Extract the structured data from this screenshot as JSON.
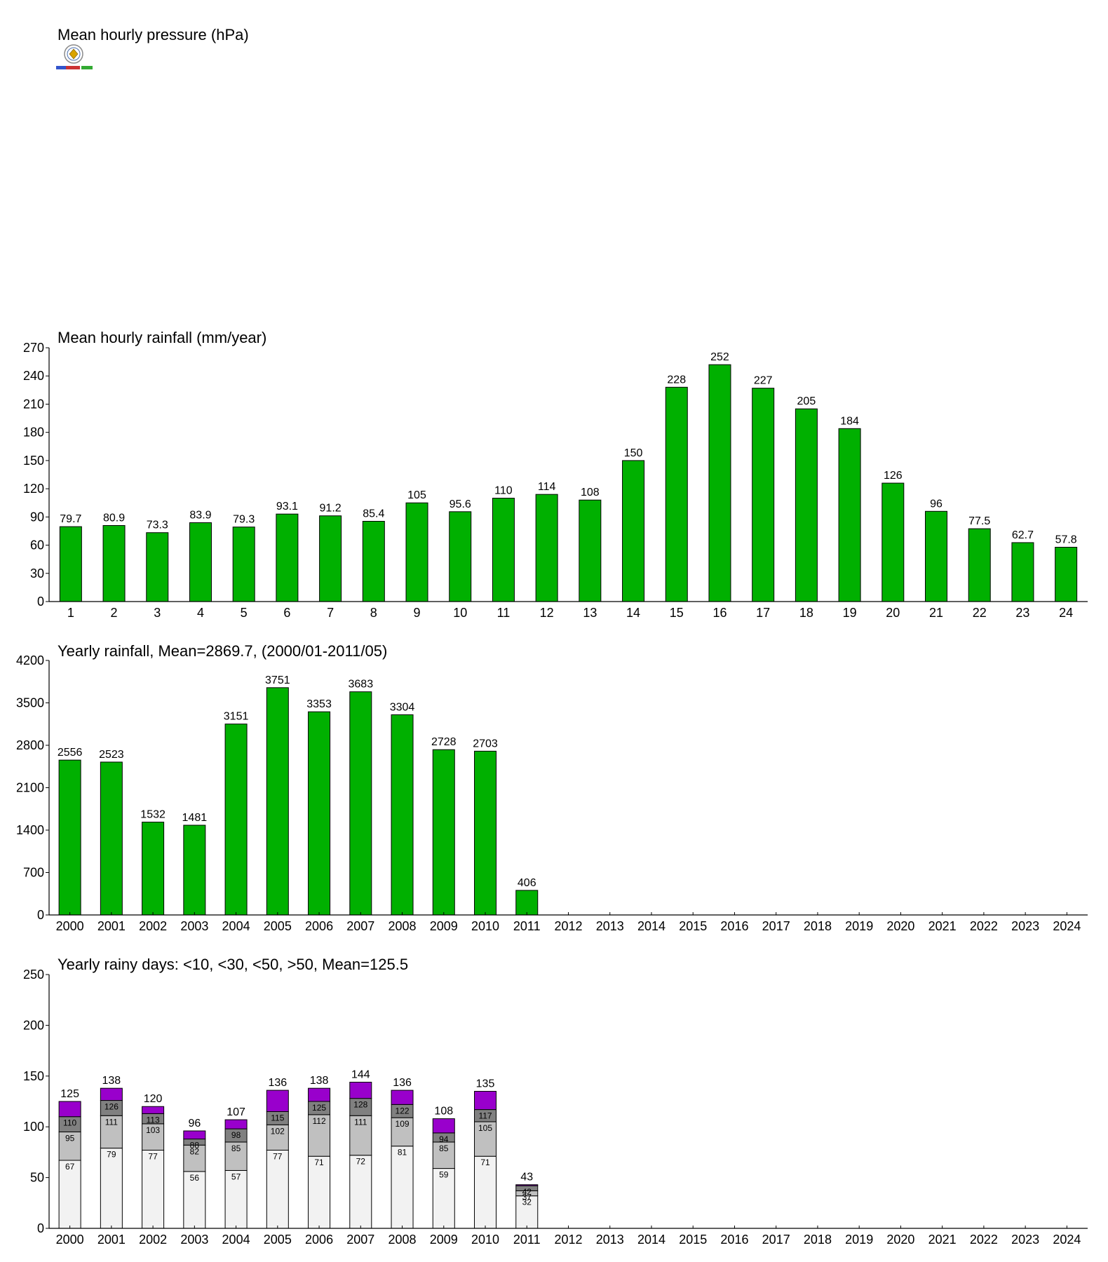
{
  "colors": {
    "bar_green": "#00b000",
    "purple": "#9900cc",
    "dark_gray": "#808080",
    "light_gray": "#c0c0c0",
    "lightest": "#f2f2f2"
  },
  "icons": {
    "logo": "lab-seal-logo"
  },
  "chart_data": [
    {
      "id": "pressure",
      "type": "bar",
      "title": "Mean hourly pressure (hPa)",
      "empty": true
    },
    {
      "id": "hourly_rain",
      "type": "bar",
      "title": "Mean hourly rainfall (mm/year)",
      "categories": [
        "1",
        "2",
        "3",
        "4",
        "5",
        "6",
        "7",
        "8",
        "9",
        "10",
        "11",
        "12",
        "13",
        "14",
        "15",
        "16",
        "17",
        "18",
        "19",
        "20",
        "21",
        "22",
        "23",
        "24"
      ],
      "values": [
        79.7,
        80.9,
        73.3,
        83.9,
        79.3,
        93.1,
        91.2,
        85.4,
        105,
        95.6,
        110,
        114,
        108,
        150,
        228,
        252,
        227,
        205,
        184,
        126,
        96,
        77.5,
        62.7,
        57.8
      ],
      "labels": [
        "79.7",
        "80.9",
        "73.3",
        "83.9",
        "79.3",
        "93.1",
        "91.2",
        "85.4",
        "105",
        "95.6",
        "110",
        "114",
        "108",
        "150",
        "228",
        "252",
        "227",
        "205",
        "184",
        "126",
        "96",
        "77.5",
        "62.7",
        "57.8"
      ],
      "ylim": [
        0,
        270
      ],
      "yticks": [
        0,
        30,
        60,
        90,
        120,
        150,
        180,
        210,
        240,
        270
      ],
      "color": "#00b000"
    },
    {
      "id": "yearly_rain",
      "type": "bar",
      "title": "Yearly rainfall, Mean=2869.7, (2000/01-2011/05)",
      "categories": [
        "2000",
        "2001",
        "2002",
        "2003",
        "2004",
        "2005",
        "2006",
        "2007",
        "2008",
        "2009",
        "2010",
        "2011",
        "2012",
        "2013",
        "2014",
        "2015",
        "2016",
        "2017",
        "2018",
        "2019",
        "2020",
        "2021",
        "2022",
        "2023",
        "2024"
      ],
      "values": [
        2556,
        2523,
        1532,
        1481,
        3151,
        3751,
        3353,
        3683,
        3304,
        2728,
        2703,
        406,
        null,
        null,
        null,
        null,
        null,
        null,
        null,
        null,
        null,
        null,
        null,
        null,
        null
      ],
      "ylim": [
        0,
        4200
      ],
      "yticks": [
        0,
        700,
        1400,
        2100,
        2800,
        3500,
        4200
      ],
      "color": "#00b000"
    },
    {
      "id": "rainy_days",
      "type": "bar",
      "stacked": true,
      "title": "Yearly rainy days: <10, <30, <50, >50, Mean=125.5",
      "categories": [
        "2000",
        "2001",
        "2002",
        "2003",
        "2004",
        "2005",
        "2006",
        "2007",
        "2008",
        "2009",
        "2010",
        "2011",
        "2012",
        "2013",
        "2014",
        "2015",
        "2016",
        "2017",
        "2018",
        "2019",
        "2020",
        "2021",
        "2022",
        "2023",
        "2024"
      ],
      "lt10": [
        67,
        79,
        77,
        56,
        57,
        77,
        71,
        72,
        81,
        59,
        71,
        32
      ],
      "lt30": [
        95,
        111,
        103,
        82,
        85,
        102,
        112,
        111,
        109,
        85,
        105,
        37
      ],
      "lt50": [
        110,
        126,
        113,
        88,
        98,
        115,
        125,
        128,
        122,
        94,
        117,
        42
      ],
      "total": [
        125,
        138,
        120,
        96,
        107,
        136,
        138,
        144,
        136,
        108,
        135,
        43
      ],
      "ylim": [
        0,
        250
      ],
      "yticks": [
        0,
        50,
        100,
        150,
        200,
        250
      ]
    }
  ]
}
